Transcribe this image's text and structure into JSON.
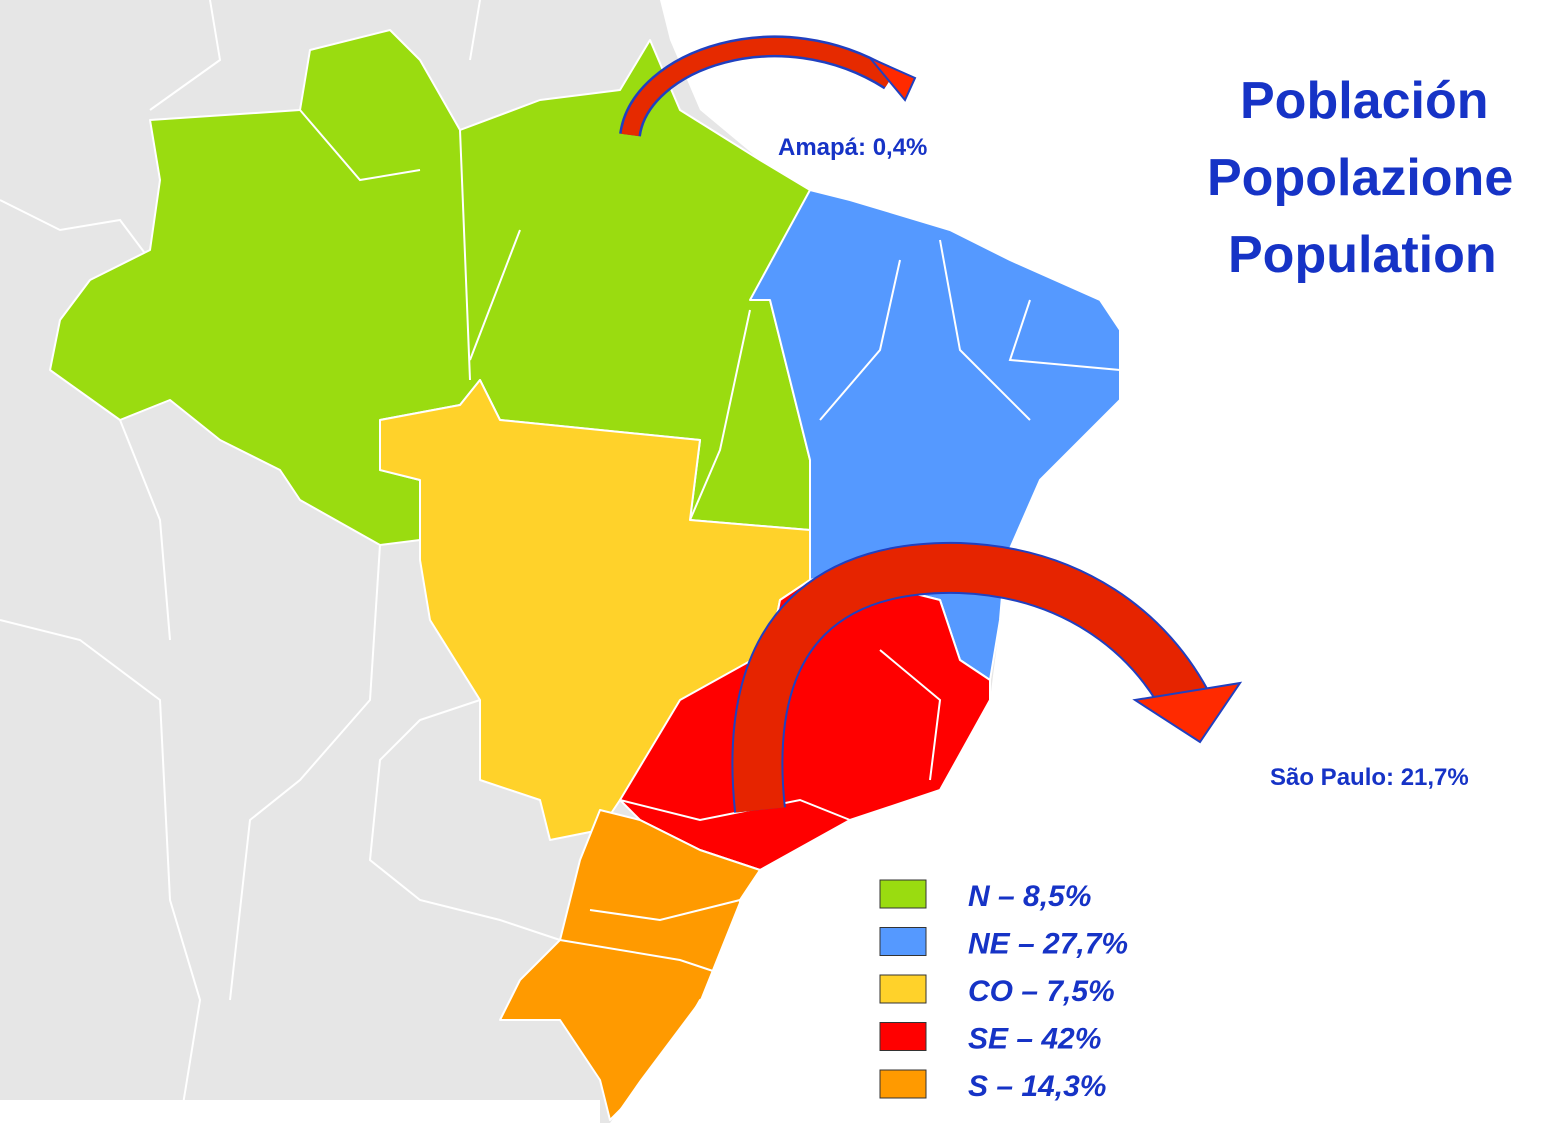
{
  "title_lines": [
    "Población",
    "Popolazione",
    "Population"
  ],
  "callouts": [
    "Amapá: 0,4%",
    "São Paulo: 21,7%"
  ],
  "legend": [
    {
      "label": "N – 8,5%",
      "color": "#9adc10"
    },
    {
      "label": "NE – 27,7%",
      "color": "#5599ff"
    },
    {
      "label": "CO – 7,5%",
      "color": "#ffd22a"
    },
    {
      "label": "SE – 42%",
      "color": "#ff0000"
    },
    {
      "label": "S – 14,3%",
      "color": "#ff9a00"
    }
  ]
}
